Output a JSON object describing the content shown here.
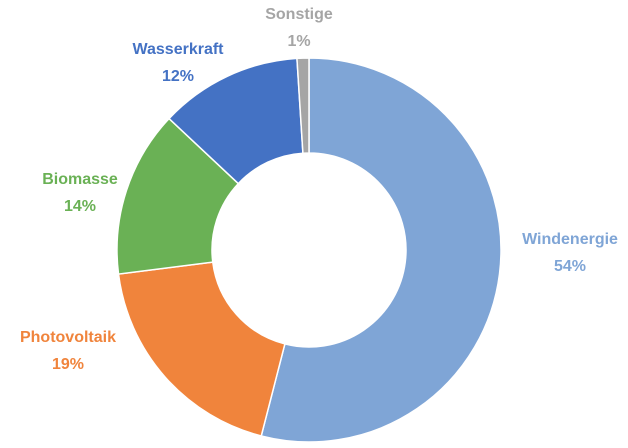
{
  "chart_data": {
    "type": "donut",
    "categories": [
      "Windenergie",
      "Photovoltaik",
      "Biomasse",
      "Wasserkraft",
      "Sonstige"
    ],
    "values": [
      54,
      19,
      14,
      12,
      1
    ],
    "value_labels": [
      "54%",
      "19%",
      "14%",
      "12%",
      "1%"
    ],
    "colors": [
      "#7fa5d6",
      "#f0843c",
      "#6ab155",
      "#4472c4",
      "#a5a5a5"
    ]
  }
}
